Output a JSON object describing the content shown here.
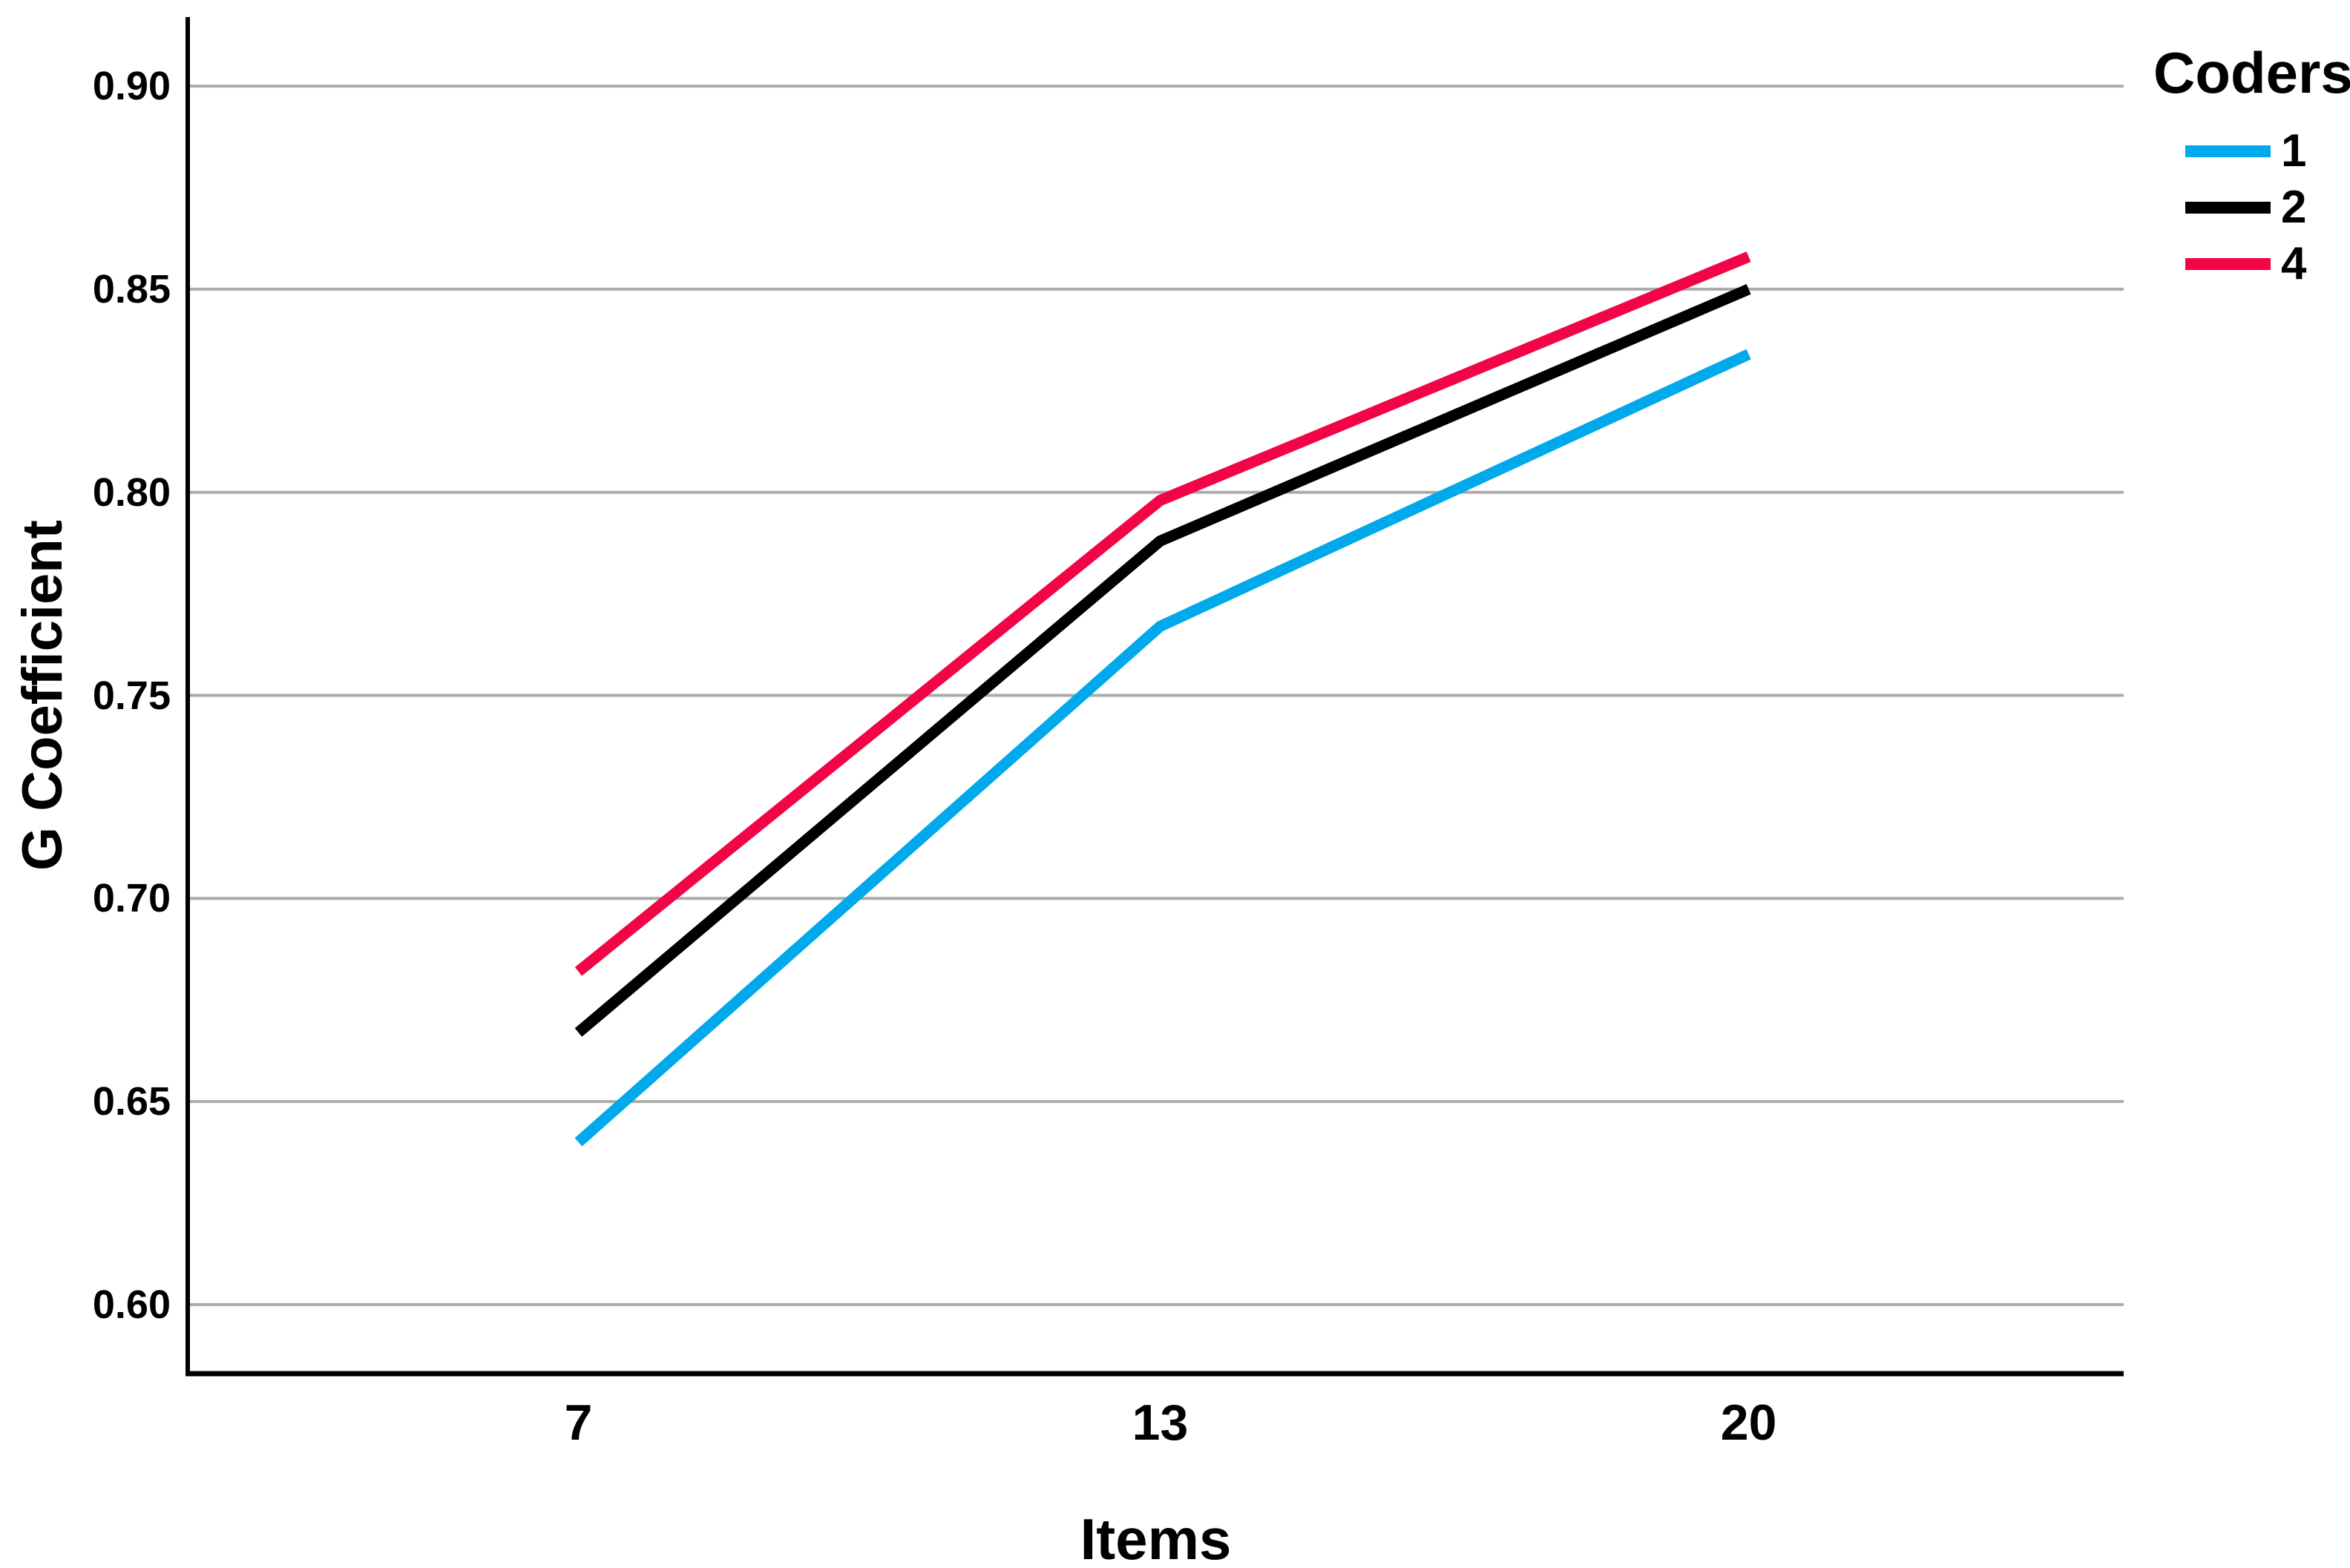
{
  "chart_data": {
    "type": "line",
    "title": "",
    "xlabel": "Items",
    "ylabel": "G Coefficient",
    "categories": [
      "7",
      "13",
      "20"
    ],
    "series": [
      {
        "name": "1",
        "color": "#00A9EC",
        "values": [
          0.64,
          0.767,
          0.834
        ]
      },
      {
        "name": "2",
        "color": "#000000",
        "values": [
          0.667,
          0.788,
          0.85
        ]
      },
      {
        "name": "4",
        "color": "#F20546",
        "values": [
          0.682,
          0.798,
          0.858
        ]
      }
    ],
    "ytick_labels": [
      "0.60",
      "0.65",
      "0.70",
      "0.75",
      "0.80",
      "0.85",
      "0.90"
    ],
    "ylim": [
      0.583,
      0.917
    ],
    "grid": "horizontal",
    "gridline_color": "#ABABAB",
    "axis_color": "#000000",
    "legend": {
      "title": "Coders",
      "position": "top-right"
    }
  }
}
